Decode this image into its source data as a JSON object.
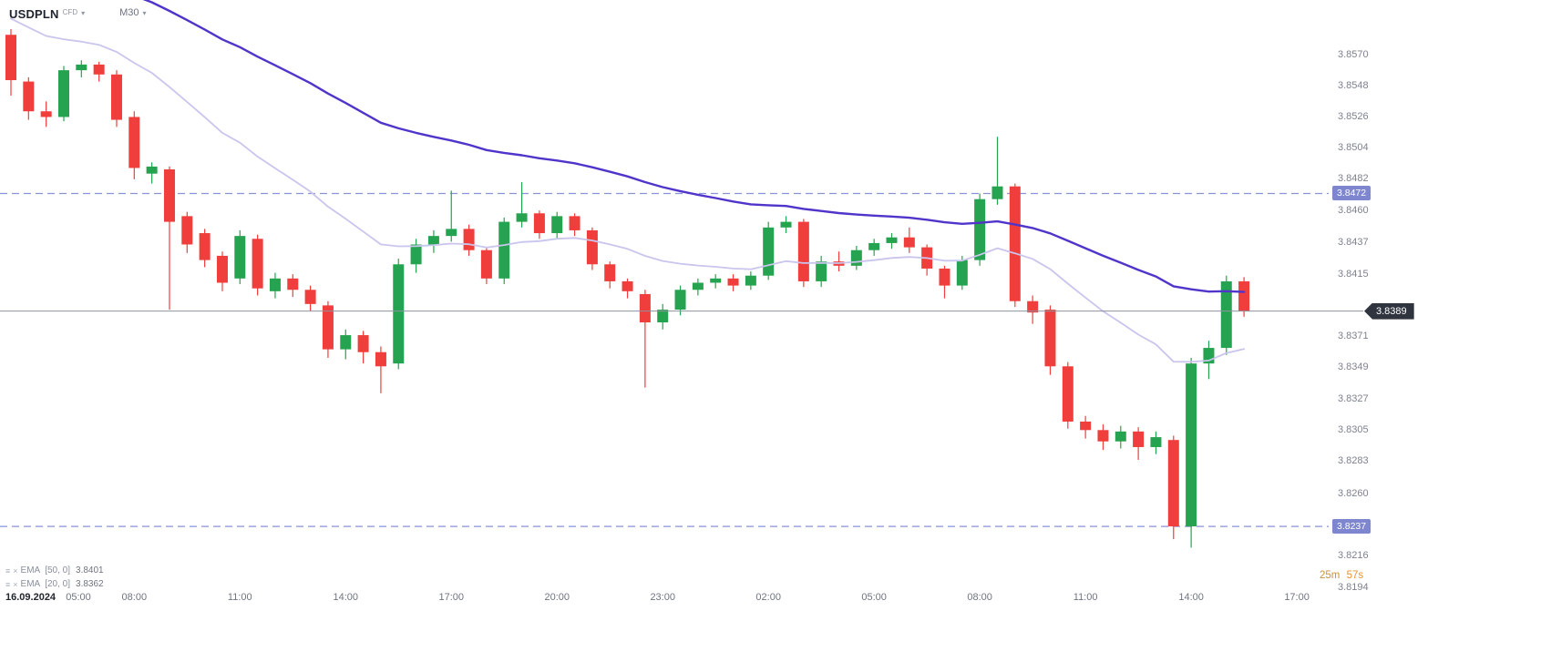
{
  "header": {
    "symbol": "USDPLN",
    "instrument_type": "CFD",
    "timeframe": "M30"
  },
  "icons": {
    "caret_down": "▾",
    "indicator_settings": "≡",
    "indicator_close": "×"
  },
  "countdown": {
    "minutes": "25m",
    "seconds": "57s"
  },
  "chart_data": {
    "type": "candlestick",
    "symbol": "USDPLN",
    "timeframe": "M30",
    "start_time": "16.09.2024 04:30",
    "interval_minutes": 30,
    "colors": {
      "bullish": "#26a350",
      "bearish": "#ef3e3c",
      "ema50": "#5134c9",
      "ema20": "#c9c5ed",
      "level_line": "#8a92d8",
      "level_badge": "#7d86ce",
      "current_line": "#8f929e",
      "current_badge": "#30343f"
    },
    "y_axis_labels": [
      "3.8570",
      "3.8548",
      "3.8526",
      "3.8504",
      "3.8482",
      "3.8460",
      "3.8437",
      "3.8415",
      "3.8371",
      "3.8349",
      "3.8327",
      "3.8305",
      "3.8283",
      "3.8260",
      "3.8238",
      "3.8216",
      "3.8194"
    ],
    "x_axis": {
      "date_label": "16.09.2024",
      "time_labels": [
        "05:00",
        "08:00",
        "11:00",
        "14:00",
        "17:00",
        "20:00",
        "23:00",
        "02:00",
        "05:00",
        "08:00",
        "11:00",
        "14:00",
        "17:00"
      ]
    },
    "levels": [
      {
        "price": 3.8472,
        "label": "3.8472"
      },
      {
        "price": 3.8237,
        "label": "3.8237"
      }
    ],
    "current_price": {
      "price": 3.8389,
      "label": "3.8389"
    },
    "indicators": [
      {
        "name": "EMA",
        "params": "[50, 0]",
        "period": 50,
        "value": "3.8401",
        "color": "#5134c9"
      },
      {
        "name": "EMA",
        "params": "[20, 0]",
        "period": 20,
        "value": "3.8362",
        "color": "#c9c5ed"
      }
    ],
    "candles": [
      [
        3.8584,
        3.8588,
        3.8541,
        3.8552
      ],
      [
        3.8551,
        3.8554,
        3.8524,
        3.853
      ],
      [
        3.853,
        3.8537,
        3.8519,
        3.8526
      ],
      [
        3.8526,
        3.8562,
        3.8523,
        3.8559
      ],
      [
        3.8559,
        3.8566,
        3.8554,
        3.8563
      ],
      [
        3.8563,
        3.8565,
        3.8551,
        3.8556
      ],
      [
        3.8556,
        3.8559,
        3.8519,
        3.8524
      ],
      [
        3.8526,
        3.853,
        3.8482,
        3.849
      ],
      [
        3.8486,
        3.8494,
        3.8479,
        3.8491
      ],
      [
        3.8489,
        3.8491,
        3.839,
        3.8452
      ],
      [
        3.8456,
        3.8459,
        3.843,
        3.8436
      ],
      [
        3.8444,
        3.8447,
        3.842,
        3.8425
      ],
      [
        3.8428,
        3.8431,
        3.8403,
        3.8409
      ],
      [
        3.8412,
        3.8446,
        3.8408,
        3.8442
      ],
      [
        3.844,
        3.8443,
        3.84,
        3.8405
      ],
      [
        3.8403,
        3.8416,
        3.8398,
        3.8412
      ],
      [
        3.8412,
        3.8415,
        3.8399,
        3.8404
      ],
      [
        3.8404,
        3.8407,
        3.8389,
        3.8394
      ],
      [
        3.8393,
        3.8396,
        3.8356,
        3.8362
      ],
      [
        3.8362,
        3.8376,
        3.8355,
        3.8372
      ],
      [
        3.8372,
        3.8375,
        3.8352,
        3.836
      ],
      [
        3.836,
        3.8364,
        3.8331,
        3.835
      ],
      [
        3.8352,
        3.8426,
        3.8348,
        3.8422
      ],
      [
        3.8422,
        3.844,
        3.8416,
        3.8436
      ],
      [
        3.8436,
        3.8446,
        3.843,
        3.8442
      ],
      [
        3.8442,
        3.8474,
        3.8438,
        3.8447
      ],
      [
        3.8447,
        3.845,
        3.8428,
        3.8432
      ],
      [
        3.8432,
        3.8434,
        3.8408,
        3.8412
      ],
      [
        3.8412,
        3.8455,
        3.8408,
        3.8452
      ],
      [
        3.8452,
        3.848,
        3.8448,
        3.8458
      ],
      [
        3.8458,
        3.846,
        3.844,
        3.8444
      ],
      [
        3.8444,
        3.8459,
        3.844,
        3.8456
      ],
      [
        3.8456,
        3.8458,
        3.8442,
        3.8446
      ],
      [
        3.8446,
        3.8448,
        3.8418,
        3.8422
      ],
      [
        3.8422,
        3.8424,
        3.8405,
        3.841
      ],
      [
        3.841,
        3.8412,
        3.8398,
        3.8403
      ],
      [
        3.8401,
        3.8404,
        3.8335,
        3.8381
      ],
      [
        3.8381,
        3.8394,
        3.8376,
        3.839
      ],
      [
        3.839,
        3.8407,
        3.8386,
        3.8404
      ],
      [
        3.8404,
        3.8412,
        3.84,
        3.8409
      ],
      [
        3.8409,
        3.8415,
        3.8405,
        3.8412
      ],
      [
        3.8412,
        3.8415,
        3.8403,
        3.8407
      ],
      [
        3.8407,
        3.8417,
        3.8404,
        3.8414
      ],
      [
        3.8414,
        3.8452,
        3.8411,
        3.8448
      ],
      [
        3.8448,
        3.8456,
        3.8444,
        3.8452
      ],
      [
        3.8452,
        3.8454,
        3.8406,
        3.841
      ],
      [
        3.841,
        3.8428,
        3.8406,
        3.8424
      ],
      [
        3.8424,
        3.8431,
        3.8417,
        3.8421
      ],
      [
        3.8421,
        3.8435,
        3.8418,
        3.8432
      ],
      [
        3.8432,
        3.844,
        3.8428,
        3.8437
      ],
      [
        3.8437,
        3.8444,
        3.8433,
        3.8441
      ],
      [
        3.8441,
        3.8448,
        3.843,
        3.8434
      ],
      [
        3.8434,
        3.8436,
        3.8414,
        3.8419
      ],
      [
        3.8419,
        3.8421,
        3.8398,
        3.8407
      ],
      [
        3.8407,
        3.8428,
        3.8404,
        3.8425
      ],
      [
        3.8425,
        3.8472,
        3.8421,
        3.8468
      ],
      [
        3.8468,
        3.8512,
        3.8464,
        3.8477
      ],
      [
        3.8477,
        3.8479,
        3.8392,
        3.8396
      ],
      [
        3.8396,
        3.84,
        3.838,
        3.8388
      ],
      [
        3.839,
        3.8393,
        3.8344,
        3.835
      ],
      [
        3.835,
        3.8353,
        3.8306,
        3.8311
      ],
      [
        3.8311,
        3.8315,
        3.8299,
        3.8305
      ],
      [
        3.8305,
        3.8309,
        3.8291,
        3.8297
      ],
      [
        3.8297,
        3.8308,
        3.8292,
        3.8304
      ],
      [
        3.8304,
        3.8307,
        3.8284,
        3.8293
      ],
      [
        3.8293,
        3.8304,
        3.8288,
        3.83
      ],
      [
        3.8298,
        3.8301,
        3.8228,
        3.8237
      ],
      [
        3.8237,
        3.8356,
        3.8222,
        3.8352
      ],
      [
        3.8352,
        3.8368,
        3.8341,
        3.8363
      ],
      [
        3.8363,
        3.8414,
        3.8358,
        3.841
      ],
      [
        3.841,
        3.8413,
        3.8385,
        3.8389
      ]
    ]
  }
}
